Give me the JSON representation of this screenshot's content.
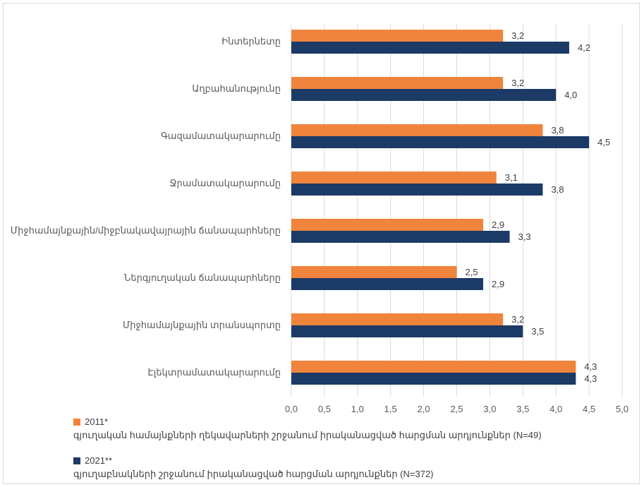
{
  "colors": {
    "s2011": "#F0843C",
    "s2021": "#1B3A66",
    "grid": "#d9d9d9"
  },
  "chart_data": {
    "type": "bar",
    "orientation": "horizontal",
    "title": "",
    "xlabel": "",
    "ylabel": "",
    "xlim": [
      0,
      5
    ],
    "ticks": [
      "0,0",
      "0,5",
      "1,0",
      "1,5",
      "2,0",
      "2,5",
      "3,0",
      "3,5",
      "4,0",
      "4,5",
      "5,0"
    ],
    "grid": true,
    "legend_position": "bottom-left",
    "categories": [
      "Ինտերնետը",
      "Աղբահանությունը",
      "Գազամատակարարումը",
      "Ջրամատակարարումը",
      "Միջհամայնքային/միջբնակավայրային ճանապարհները",
      "Ներգյուղական ճանապարհները",
      "Միջհամայնքային տրանսպորտը",
      "Էլեկտրամատակարարումը"
    ],
    "series": [
      {
        "name": "2011*",
        "values": [
          3.2,
          3.2,
          3.8,
          3.1,
          2.9,
          2.5,
          3.2,
          4.3
        ],
        "labels": [
          "3,2",
          "3,2",
          "3,8",
          "3,1",
          "2,9",
          "2,5",
          "3,2",
          "4,3"
        ]
      },
      {
        "name": "2021**",
        "values": [
          4.2,
          4.0,
          4.5,
          3.8,
          3.3,
          2.9,
          3.5,
          4.3
        ],
        "labels": [
          "4,2",
          "4,0",
          "4,5",
          "3,8",
          "3,3",
          "2,9",
          "3,5",
          "4,3"
        ]
      }
    ]
  },
  "legend": [
    {
      "label": "2011*",
      "description": "գյուղական համայնքների ղեկավարների շրջանում իրականացված հարցման արդյունքներ (N=49)"
    },
    {
      "label": "2021**",
      "description": "գյուղաբնակների շրջանում իրականացված հարցման արդյունքներ (N=372)"
    }
  ]
}
